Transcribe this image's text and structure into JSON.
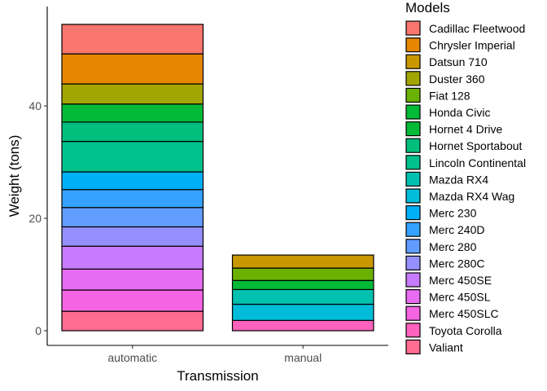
{
  "chart_data": {
    "type": "bar",
    "stacked": true,
    "categories": [
      "automatic",
      "manual"
    ],
    "xlabel": "Transmission",
    "ylabel": "Weight (tons)",
    "ylim": [
      0,
      56
    ],
    "yticks": [
      0,
      20,
      40
    ],
    "grid": false,
    "legend": {
      "title": "Models",
      "position": "right"
    },
    "series": [
      {
        "name": "Cadillac Fleetwood",
        "color": "#F8766D",
        "values": [
          5.25,
          0
        ]
      },
      {
        "name": "Chrysler Imperial",
        "color": "#E58700",
        "values": [
          5.345,
          0
        ]
      },
      {
        "name": "Datsun 710",
        "color": "#C99800",
        "values": [
          0,
          2.32
        ]
      },
      {
        "name": "Duster 360",
        "color": "#A3A500",
        "values": [
          3.57,
          0
        ]
      },
      {
        "name": "Fiat 128",
        "color": "#6BB100",
        "values": [
          0,
          2.2
        ]
      },
      {
        "name": "Honda Civic",
        "color": "#00BA38",
        "values": [
          0,
          1.615
        ]
      },
      {
        "name": "Hornet 4 Drive",
        "color": "#00BA38",
        "values": [
          3.215,
          0
        ]
      },
      {
        "name": "Hornet Sportabout",
        "color": "#00BF7D",
        "values": [
          3.44,
          0
        ]
      },
      {
        "name": "Lincoln Continental",
        "color": "#00C08B",
        "values": [
          5.424,
          0
        ]
      },
      {
        "name": "Mazda RX4",
        "color": "#00C0AF",
        "values": [
          0,
          2.62
        ]
      },
      {
        "name": "Mazda RX4 Wag",
        "color": "#00BCD8",
        "values": [
          0,
          2.875
        ]
      },
      {
        "name": "Merc 230",
        "color": "#00B0F6",
        "values": [
          3.15,
          0
        ]
      },
      {
        "name": "Merc 240D",
        "color": "#35A2FF",
        "values": [
          3.19,
          0
        ]
      },
      {
        "name": "Merc 280",
        "color": "#619CFF",
        "values": [
          3.44,
          0
        ]
      },
      {
        "name": "Merc 280C",
        "color": "#9590FF",
        "values": [
          3.44,
          0
        ]
      },
      {
        "name": "Merc 450SE",
        "color": "#C77CFF",
        "values": [
          4.07,
          0
        ]
      },
      {
        "name": "Merc 450SL",
        "color": "#E76BF3",
        "values": [
          3.73,
          0
        ]
      },
      {
        "name": "Merc 450SLC",
        "color": "#F564E3",
        "values": [
          3.78,
          0
        ]
      },
      {
        "name": "Toyota Corolla",
        "color": "#FF62BC",
        "values": [
          0,
          1.835
        ]
      },
      {
        "name": "Valiant",
        "color": "#FF6C91",
        "values": [
          3.46,
          0
        ]
      }
    ]
  }
}
